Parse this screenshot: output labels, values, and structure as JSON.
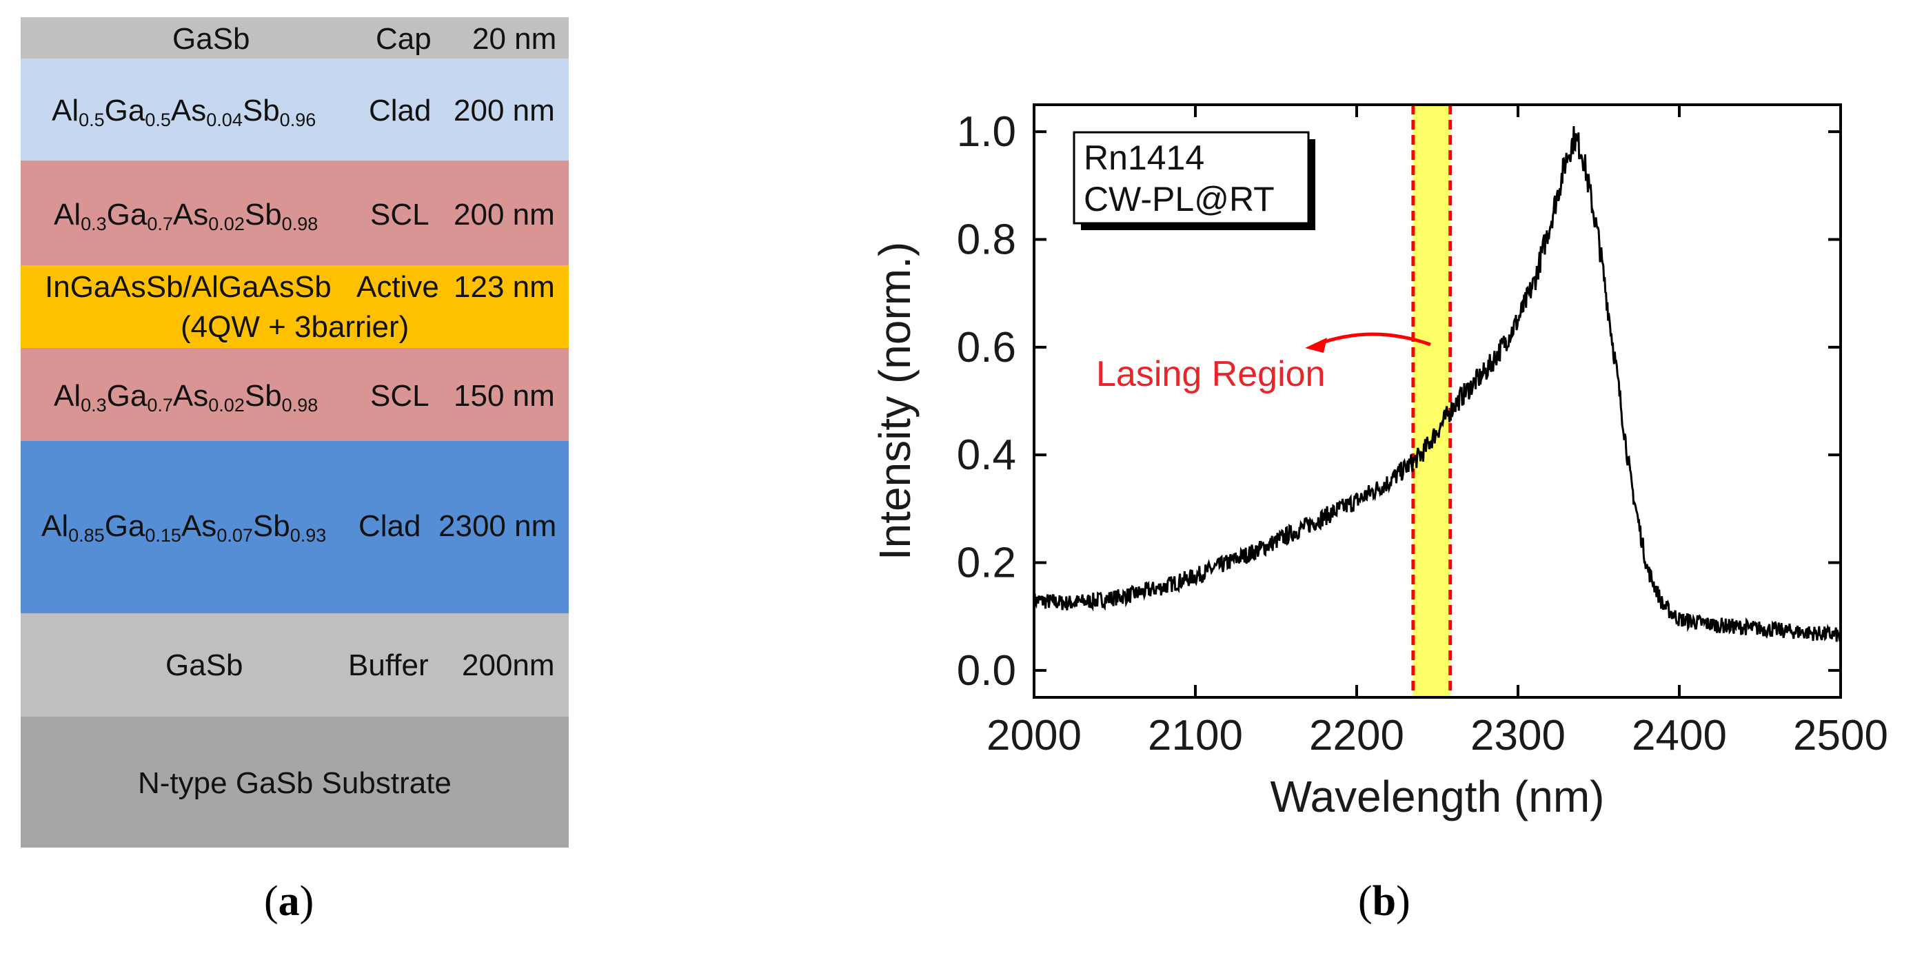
{
  "panel_a": {
    "layers": [
      {
        "name": "cap",
        "material": "GaSb",
        "role": "Cap",
        "thickness": "20 nm",
        "color": "#c0c0c0"
      },
      {
        "name": "upper-clad",
        "material_parts": [
          [
            "Al",
            ""
          ],
          [
            "",
            "0.5"
          ],
          [
            "Ga",
            ""
          ],
          [
            "",
            "0.5"
          ],
          [
            "As",
            ""
          ],
          [
            "",
            "0.04"
          ],
          [
            "Sb",
            ""
          ],
          [
            "",
            "0.96"
          ]
        ],
        "material": "Al0.5Ga0.5As0.04Sb0.96",
        "role": "Clad",
        "thickness": "200 nm",
        "color": "#c5d8ef"
      },
      {
        "name": "upper-scl",
        "material": "Al0.3Ga0.7As0.02Sb0.98",
        "role": "SCL",
        "thickness": "200 nm",
        "color": "#d99594"
      },
      {
        "name": "active",
        "material": "InGaAsSb/AlGaAsSb",
        "material_line2": "(4QW + 3barrier)",
        "role": "Active",
        "thickness": "123 nm",
        "color": "#ffc000"
      },
      {
        "name": "lower-scl",
        "material": "Al0.3Ga0.7As0.02Sb0.98",
        "role": "SCL",
        "thickness": "150 nm",
        "color": "#d99594"
      },
      {
        "name": "lower-clad",
        "material": "Al0.85Ga0.15As0.07Sb0.93",
        "role": "Clad",
        "thickness": "2300 nm",
        "color": "#558ed5"
      },
      {
        "name": "buffer",
        "material": "GaSb",
        "role": "Buffer",
        "thickness": "200nm",
        "color": "#bfbfbf"
      },
      {
        "name": "substrate",
        "material": "N-type GaSb Substrate",
        "role": "",
        "thickness": "",
        "color": "#a6a6a6"
      }
    ],
    "upper_clad": {
      "a": "Al",
      "a_sub": "0.5",
      "b": "Ga",
      "b_sub": "0.5",
      "c": "As",
      "c_sub": "0.04",
      "d": "Sb",
      "d_sub": "0.96"
    },
    "upper_scl": {
      "a": "Al",
      "a_sub": "0.3",
      "b": "Ga",
      "b_sub": "0.7",
      "c": "As",
      "c_sub": "0.02",
      "d": "Sb",
      "d_sub": "0.98"
    },
    "lower_scl": {
      "a": "Al",
      "a_sub": "0.3",
      "b": "Ga",
      "b_sub": "0.7",
      "c": "As",
      "c_sub": "0.02",
      "d": "Sb",
      "d_sub": "0.98"
    },
    "lower_clad": {
      "a": "Al",
      "a_sub": "0.85",
      "b": "Ga",
      "b_sub": "0.15",
      "c": "As",
      "c_sub": "0.07",
      "d": "Sb",
      "d_sub": "0.93"
    },
    "caption_open": "(",
    "caption_letter": "a",
    "caption_close": ")"
  },
  "panel_b": {
    "caption_open": "(",
    "caption_letter": "b",
    "caption_close": ")"
  },
  "chart_data": {
    "type": "line",
    "title": "",
    "xlabel": "Wavelength (nm)",
    "ylabel": "Intensity (norm.)",
    "xlim": [
      2000,
      2500
    ],
    "ylim": [
      -0.05,
      1.05
    ],
    "xticks": [
      2000,
      2100,
      2200,
      2300,
      2400,
      2500
    ],
    "xtick_labels": [
      "2000",
      "2100",
      "2200",
      "2300",
      "2400",
      "2500"
    ],
    "yticks": [
      0.0,
      0.2,
      0.4,
      0.6,
      0.8,
      1.0
    ],
    "ytick_labels": [
      "0.0",
      "0.2",
      "0.4",
      "0.6",
      "0.8",
      "1.0"
    ],
    "legend_line1": "Rn1414",
    "legend_line2": "CW-PL@RT",
    "annotation": "Lasing Region",
    "lasing_region": [
      2235,
      2258
    ],
    "series": [
      {
        "name": "CW-PL@RT",
        "color": "#000000",
        "x": [
          2000,
          2020,
          2040,
          2060,
          2080,
          2100,
          2120,
          2140,
          2160,
          2180,
          2200,
          2220,
          2240,
          2250,
          2260,
          2270,
          2280,
          2290,
          2300,
          2310,
          2320,
          2330,
          2335,
          2340,
          2350,
          2360,
          2370,
          2380,
          2390,
          2400,
          2420,
          2440,
          2460,
          2480,
          2500
        ],
        "y": [
          0.13,
          0.125,
          0.13,
          0.14,
          0.155,
          0.175,
          0.2,
          0.225,
          0.255,
          0.285,
          0.315,
          0.35,
          0.4,
          0.445,
          0.49,
          0.525,
          0.555,
          0.6,
          0.65,
          0.72,
          0.83,
          0.95,
          0.99,
          0.96,
          0.8,
          0.58,
          0.35,
          0.19,
          0.12,
          0.095,
          0.085,
          0.08,
          0.075,
          0.07,
          0.065
        ]
      }
    ],
    "grid": false
  },
  "colors": {
    "lasing_fill": "#ffff66",
    "lasing_line": "#ff0000",
    "annotation": "#e8262a",
    "curve": "#000000"
  }
}
